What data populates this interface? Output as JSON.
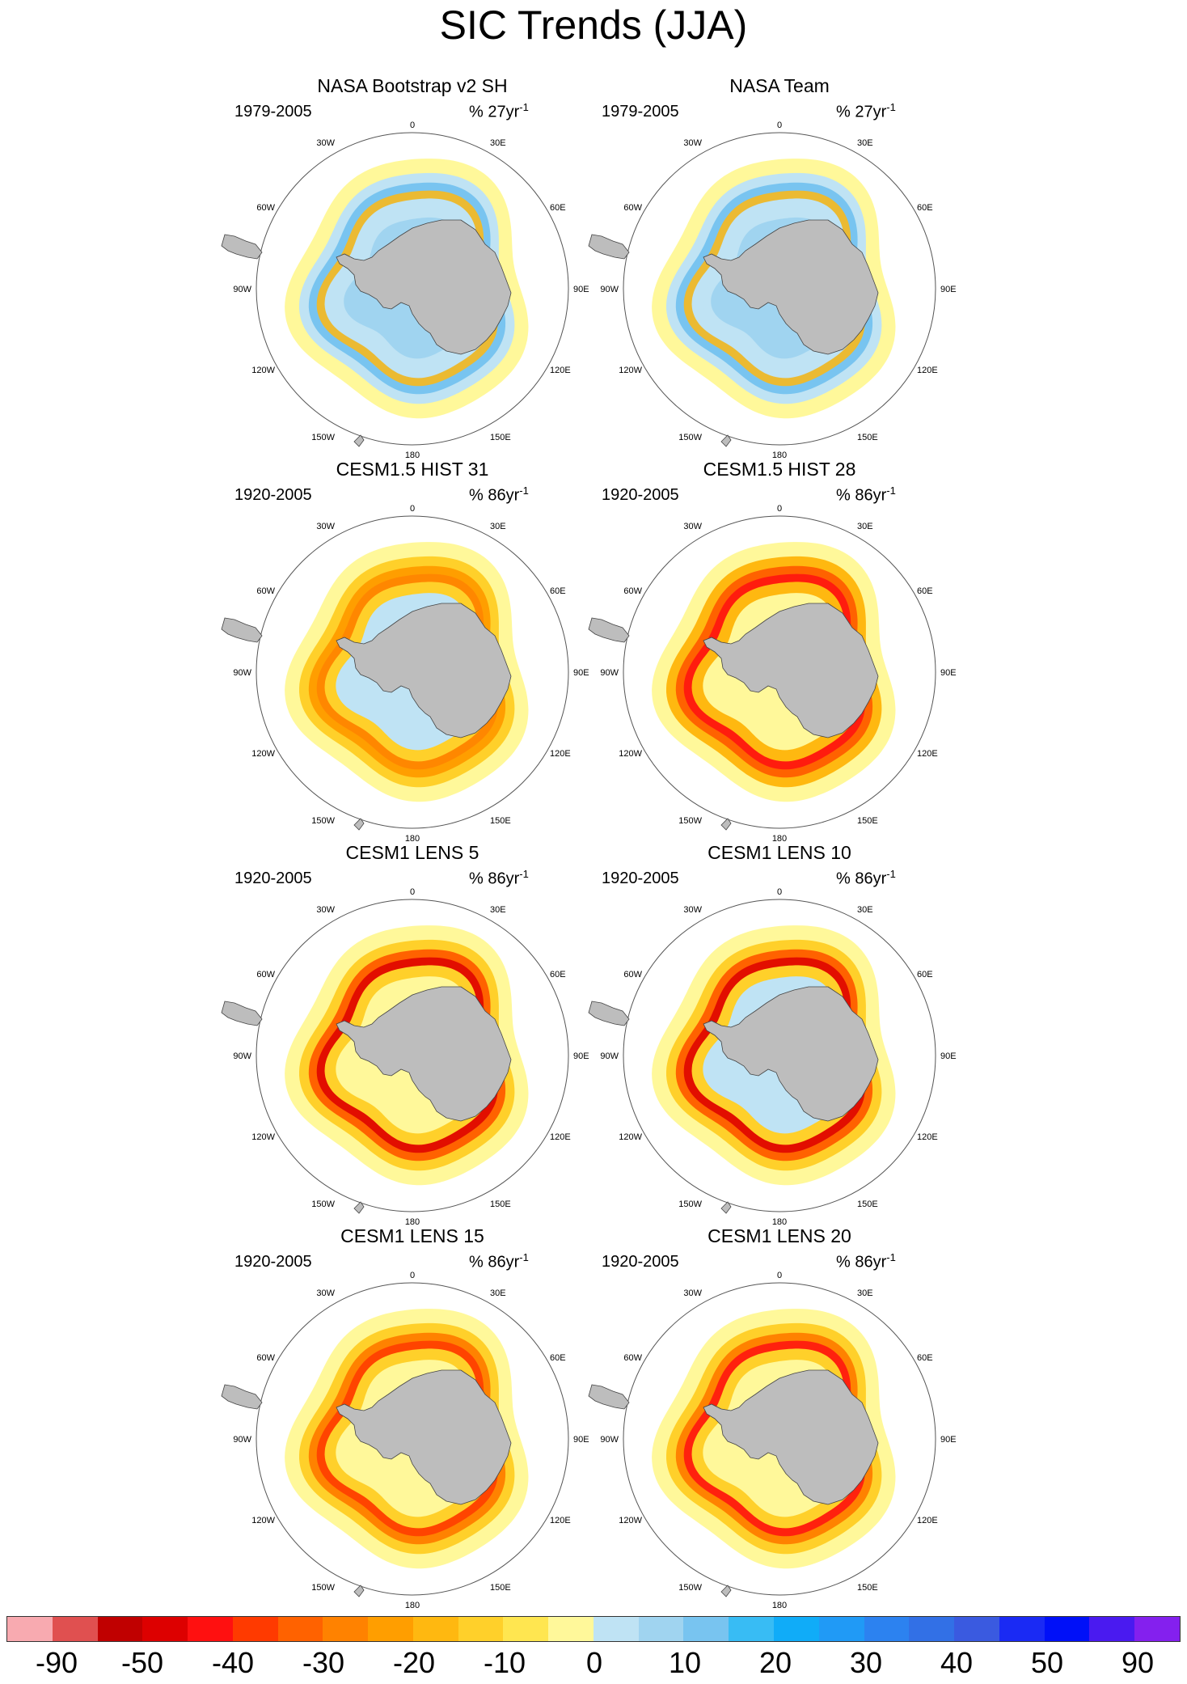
{
  "title": "SIC Trends (JJA)",
  "panels": [
    {
      "title": "NASA Bootstrap v2 SH",
      "period": "1979-2005",
      "units_prefix": "% 27yr",
      "units_sup": "-1",
      "style": "obs"
    },
    {
      "title": "NASA Team",
      "period": "1979-2005",
      "units_prefix": "% 27yr",
      "units_sup": "-1",
      "style": "obs2"
    },
    {
      "title": "CESM1.5 HIST 31",
      "period": "1920-2005",
      "units_prefix": "% 86yr",
      "units_sup": "-1",
      "style": "hist31"
    },
    {
      "title": "CESM1.5 HIST 28",
      "period": "1920-2005",
      "units_prefix": "% 86yr",
      "units_sup": "-1",
      "style": "hist28"
    },
    {
      "title": "CESM1 LENS 5",
      "period": "1920-2005",
      "units_prefix": "% 86yr",
      "units_sup": "-1",
      "style": "lens5"
    },
    {
      "title": "CESM1 LENS 10",
      "period": "1920-2005",
      "units_prefix": "% 86yr",
      "units_sup": "-1",
      "style": "lens10"
    },
    {
      "title": "CESM1 LENS 15",
      "period": "1920-2005",
      "units_prefix": "% 86yr",
      "units_sup": "-1",
      "style": "lens15"
    },
    {
      "title": "CESM1 LENS 20",
      "period": "1920-2005",
      "units_prefix": "% 86yr",
      "units_sup": "-1",
      "style": "lens20"
    }
  ],
  "map_labels": {
    "top": "0",
    "bottom": "180",
    "left": "90W",
    "right": "90E",
    "upper_left": [
      "30W",
      "60W"
    ],
    "upper_right": [
      "30E",
      "60E"
    ],
    "lower_left": [
      "120W",
      "150W"
    ],
    "lower_right": [
      "120E",
      "150E"
    ]
  },
  "colorbar": {
    "colors": [
      "#f8aab0",
      "#e05050",
      "#c00000",
      "#dd0000",
      "#ff1010",
      "#ff3a00",
      "#ff6200",
      "#ff8200",
      "#ff9e00",
      "#ffb810",
      "#ffd02a",
      "#ffe650",
      "#fff89a",
      "#bfe3f4",
      "#a0d4f0",
      "#78c4f0",
      "#38bcf4",
      "#10acf8",
      "#209af6",
      "#2c82f0",
      "#3270e6",
      "#3a5ae0",
      "#1a2af4",
      "#0010f8",
      "#4a1af0",
      "#8420ee"
    ],
    "labels": [
      "-90",
      "-50",
      "-40",
      "-30",
      "-20",
      "-10",
      "0",
      "10",
      "20",
      "30",
      "40",
      "50",
      "90"
    ]
  }
}
